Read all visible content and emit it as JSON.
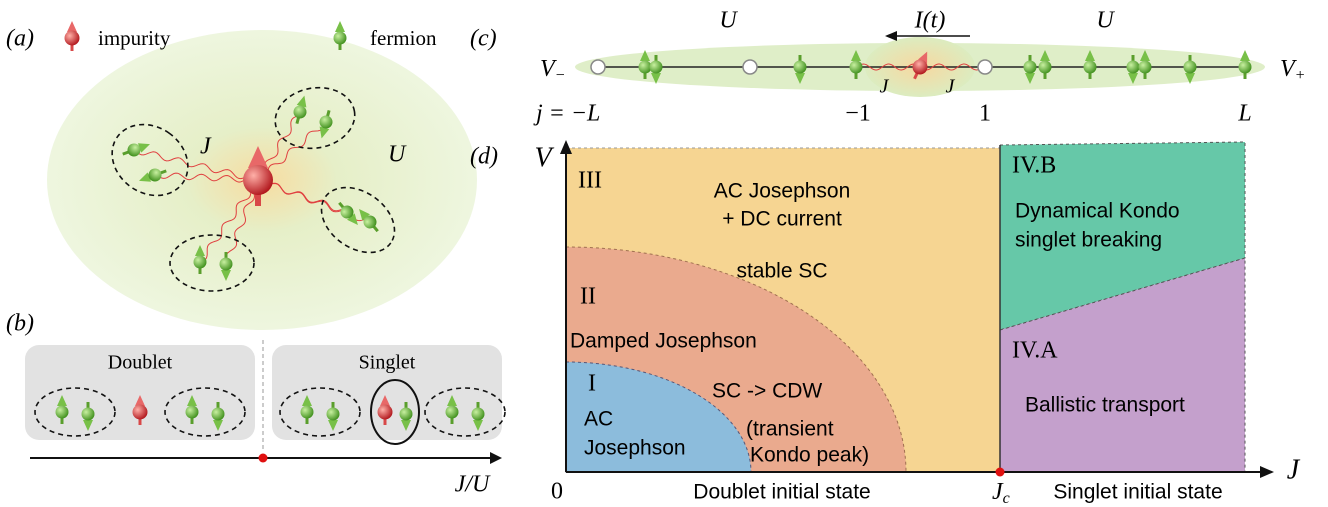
{
  "panel_a": {
    "label": "(a)",
    "legend": {
      "impurity": "impurity",
      "fermion": "fermion"
    },
    "coupling": "J",
    "interaction": "U"
  },
  "panel_b": {
    "label": "(b)",
    "doublet": "Doublet",
    "singlet": "Singlet",
    "axis_label": "J/U"
  },
  "panel_c": {
    "label": "(c)",
    "left_interaction": "U",
    "right_interaction": "U",
    "current": "I(t)",
    "left_bias": {
      "symbol": "V",
      "subscript": "−"
    },
    "right_bias": {
      "symbol": "V",
      "subscript": "+"
    },
    "left_coupling": "J",
    "right_coupling": "J",
    "site_labels": [
      "j = −L",
      "−1",
      "1",
      "L"
    ]
  },
  "panel_d": {
    "label": "(d)",
    "y_axis": "V",
    "x_axis": "J",
    "origin": "0",
    "critical": {
      "symbol": "J",
      "subscript": "c"
    },
    "x_regions": [
      "Doublet initial state",
      "Singlet initial state"
    ],
    "regions": [
      {
        "name": "III",
        "lines": [
          "AC Josephson",
          "+ DC current",
          "stable SC"
        ]
      },
      {
        "name": "II",
        "lines": [
          "Damped Josephson",
          "SC -> CDW",
          "(transient",
          "Kondo peak)"
        ]
      },
      {
        "name": "I",
        "lines": [
          "AC",
          "Josephson"
        ]
      },
      {
        "name": "IV.B",
        "lines": [
          "Dynamical Kondo",
          "singlet breaking"
        ]
      },
      {
        "name": "IV.A",
        "lines": [
          "Ballistic transport"
        ]
      }
    ]
  }
}
